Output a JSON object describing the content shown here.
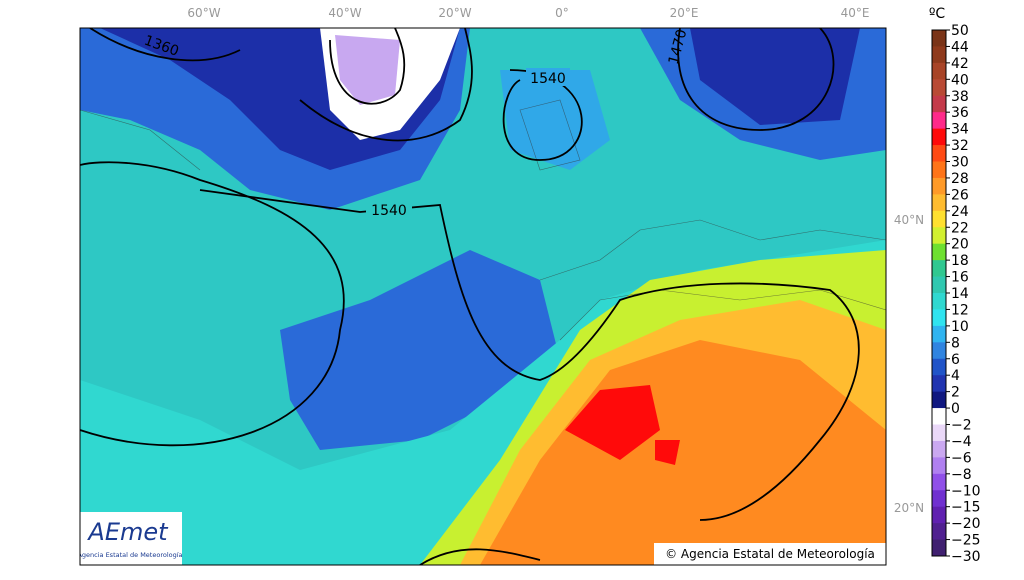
{
  "map": {
    "unit": "ºC",
    "longitudes": [
      "60°W",
      "40°W",
      "20°W",
      "0°",
      "20°E",
      "40°E"
    ],
    "latitudes": [
      "40°N",
      "20°N"
    ],
    "contours": [
      "1360",
      "1540",
      "1540",
      "1470"
    ],
    "copyright": "© Agencia Estatal de Meteorología",
    "logo": {
      "name": "AEmet",
      "subtitle": "Agencia Estatal de Meteorología"
    }
  },
  "colorbar": {
    "labels": [
      "50",
      "44",
      "42",
      "40",
      "38",
      "36",
      "34",
      "32",
      "30",
      "28",
      "26",
      "24",
      "22",
      "20",
      "18",
      "16",
      "14",
      "12",
      "10",
      "8",
      "6",
      "4",
      "2",
      "0",
      "−2",
      "−4",
      "−6",
      "−8",
      "−10",
      "−15",
      "−20",
      "−25",
      "−30"
    ],
    "colors": [
      "#7a3418",
      "#8f3a1c",
      "#a84427",
      "#b94a35",
      "#c43a4a",
      "#ff2a8a",
      "#ff0a0a",
      "#ff4a14",
      "#ff7418",
      "#ff9a28",
      "#ffbc30",
      "#ffe030",
      "#d2f030",
      "#6ee030",
      "#30c890",
      "#30c8b0",
      "#30d8d0",
      "#30e4f0",
      "#30b4f0",
      "#3084e0",
      "#2054c8",
      "#2034b0",
      "#101880",
      "#ffffff",
      "#ead8f8",
      "#caa8f0",
      "#b080f0",
      "#9050e8",
      "#7030d0",
      "#6020b0",
      "#502090",
      "#402070"
    ]
  }
}
